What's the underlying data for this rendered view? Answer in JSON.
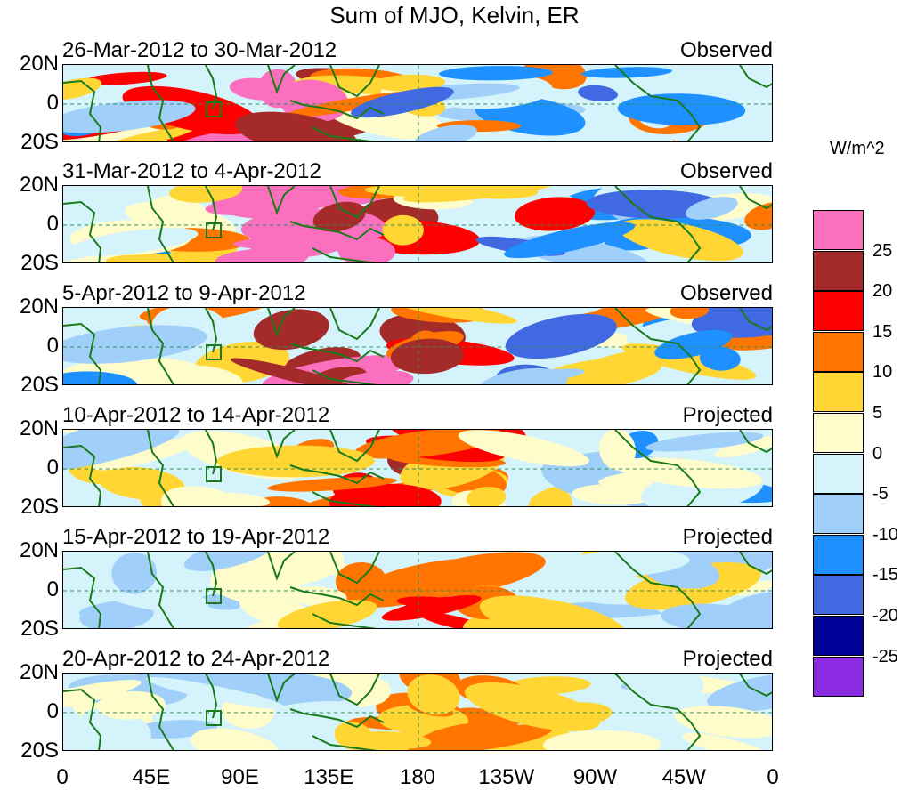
{
  "title": "Sum of MJO, Kelvin, ER",
  "panels": [
    {
      "label": "26-Mar-2012 to 30-Mar-2012",
      "type": "Observed",
      "intensity": 1.0,
      "phase": 0
    },
    {
      "label": "31-Mar-2012 to 4-Apr-2012",
      "type": "Observed",
      "intensity": 1.0,
      "phase": 1
    },
    {
      "label": "5-Apr-2012 to 9-Apr-2012",
      "type": "Observed",
      "intensity": 0.95,
      "phase": 2
    },
    {
      "label": "10-Apr-2012 to 14-Apr-2012",
      "type": "Projected",
      "intensity": 0.6,
      "phase": 3
    },
    {
      "label": "15-Apr-2012 to 19-Apr-2012",
      "type": "Projected",
      "intensity": 0.45,
      "phase": 4
    },
    {
      "label": "20-Apr-2012 to 24-Apr-2012",
      "type": "Projected",
      "intensity": 0.4,
      "phase": 5
    }
  ],
  "lat_labels": [
    "20N",
    "0",
    "20S"
  ],
  "lon_labels": [
    "0",
    "45E",
    "90E",
    "135E",
    "180",
    "135W",
    "90W",
    "45W",
    "0"
  ],
  "colorbar": {
    "title": "W/m^2",
    "labels": [
      "25",
      "20",
      "15",
      "10",
      "5",
      "0",
      "-5",
      "-10",
      "-15",
      "-20",
      "-25"
    ],
    "colors": [
      "#fa6fbe",
      "#a52a2a",
      "#ff0000",
      "#ff7500",
      "#ffd633",
      "#fffccc",
      "#d4f3fa",
      "#a0cffa",
      "#1e90ff",
      "#4169e1",
      "#000096",
      "#8a2be2"
    ]
  }
}
